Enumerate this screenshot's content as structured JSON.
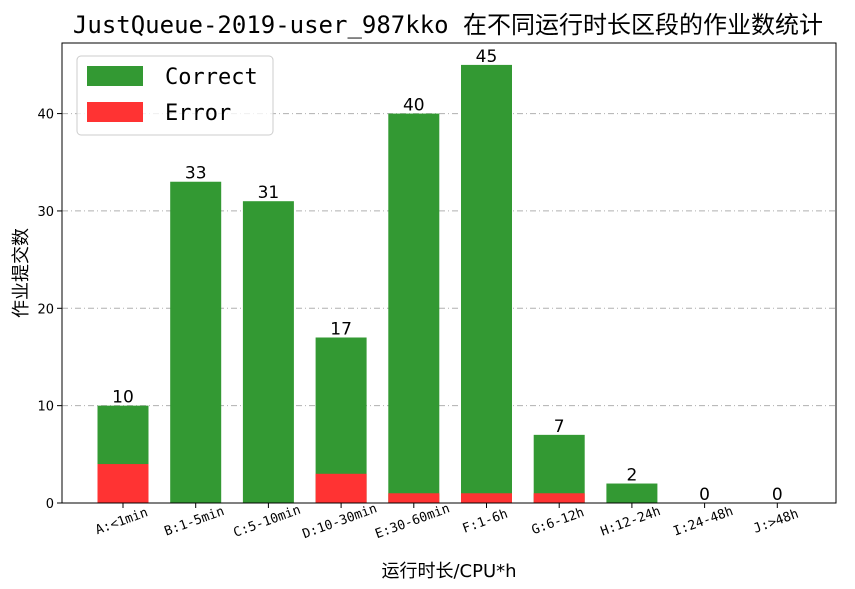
{
  "chart_data": {
    "type": "bar",
    "stacked": true,
    "title": "JustQueue-2019-user_987kko 在不同运行时长区段的作业数统计",
    "xlabel": "运行时长/CPU*h",
    "ylabel": "作业提交数",
    "ylim": [
      0,
      47.25
    ],
    "yticks": [
      0,
      10,
      20,
      30,
      40
    ],
    "grid": "y-dashdot",
    "legend_position": "top-left",
    "categories": [
      "A:<1min",
      "B:1-5min",
      "C:5-10min",
      "D:10-30min",
      "E:30-60min",
      "F:1-6h",
      "G:6-12h",
      "H:12-24h",
      "I:24-48h",
      "J:>48h"
    ],
    "series": [
      {
        "name": "Correct",
        "color": "#339933",
        "values": [
          6,
          33,
          31,
          14,
          39,
          44,
          6,
          2,
          0,
          0
        ]
      },
      {
        "name": "Error",
        "color": "#ff3333",
        "values": [
          4,
          0,
          0,
          3,
          1,
          1,
          1,
          0,
          0,
          0
        ]
      }
    ],
    "totals": [
      10,
      33,
      31,
      17,
      40,
      45,
      7,
      2,
      0,
      0
    ]
  }
}
